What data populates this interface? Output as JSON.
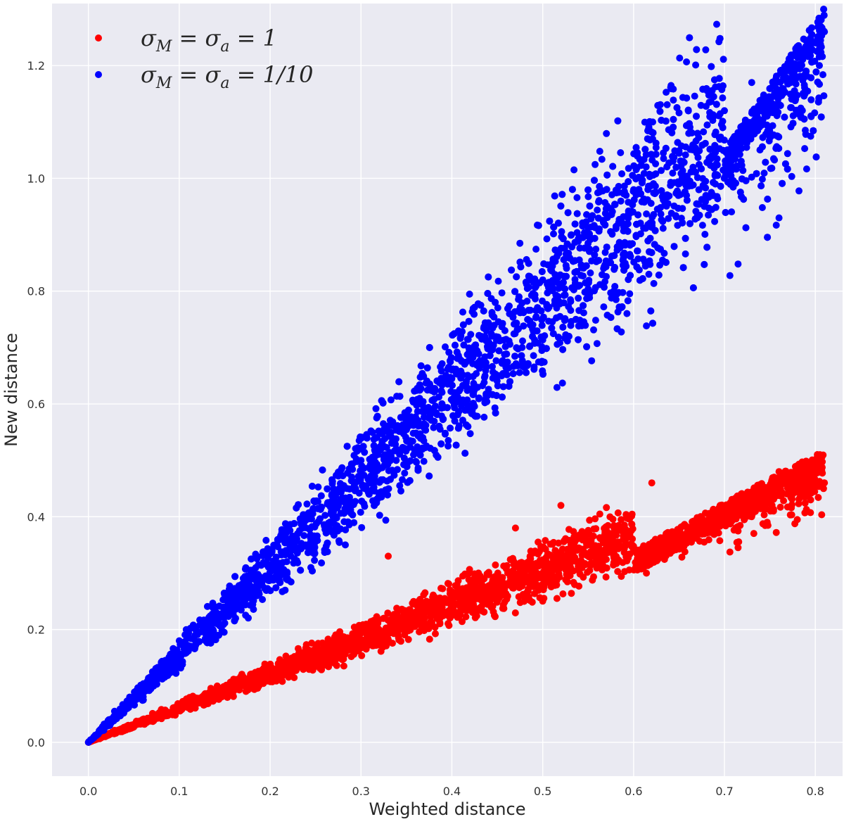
{
  "chart_data": {
    "type": "scatter",
    "xlabel": "Weighted distance",
    "ylabel": "New distance",
    "xlim": [
      -0.04,
      0.83
    ],
    "ylim": [
      -0.06,
      1.31
    ],
    "x_ticks": [
      "0.0",
      "0.1",
      "0.2",
      "0.3",
      "0.4",
      "0.5",
      "0.6",
      "0.7",
      "0.8"
    ],
    "y_ticks": [
      "0.0",
      "0.2",
      "0.4",
      "0.6",
      "0.8",
      "1.0",
      "1.2"
    ],
    "grid": true,
    "background": "#eaeaf2",
    "legend": {
      "placement": "top-left",
      "entries": [
        {
          "series": 0,
          "label_main": "σ",
          "label_sub1": "M",
          "label_mid": " = σ",
          "label_sub2": "a",
          "label_end": " = 1"
        },
        {
          "series": 1,
          "label_main": "σ",
          "label_sub1": "M",
          "label_mid": " = σ",
          "label_sub2": "a",
          "label_end": " = 1/10"
        }
      ]
    },
    "series": [
      {
        "color": "#ff0000",
        "band": {
          "x_range": [
            0.0,
            0.81
          ],
          "slope_low": 0.47,
          "slope_high": 0.75,
          "sample_points": [
            [
              0.0,
              0.0
            ],
            [
              0.1,
              0.06
            ],
            [
              0.2,
              0.12
            ],
            [
              0.3,
              0.18
            ],
            [
              0.4,
              0.24
            ],
            [
              0.5,
              0.29
            ],
            [
              0.6,
              0.34
            ],
            [
              0.7,
              0.41
            ],
            [
              0.77,
              0.46
            ],
            [
              0.81,
              0.46
            ]
          ],
          "outliers": [
            [
              0.33,
              0.33
            ],
            [
              0.76,
              0.48
            ],
            [
              0.62,
              0.46
            ],
            [
              0.52,
              0.42
            ],
            [
              0.47,
              0.38
            ]
          ]
        }
      },
      {
        "color": "#0000ff",
        "band": {
          "x_range": [
            0.0,
            0.81
          ],
          "slope_low": 1.15,
          "slope_high": 1.95,
          "sample_points": [
            [
              0.0,
              0.0
            ],
            [
              0.1,
              0.18
            ],
            [
              0.2,
              0.34
            ],
            [
              0.3,
              0.5
            ],
            [
              0.4,
              0.66
            ],
            [
              0.5,
              0.82
            ],
            [
              0.6,
              0.98
            ],
            [
              0.7,
              1.12
            ],
            [
              0.8,
              1.24
            ]
          ],
          "outliers": [
            [
              0.76,
              0.93
            ],
            [
              0.69,
              0.99
            ],
            [
              0.81,
              1.26
            ],
            [
              0.79,
              1.19
            ],
            [
              0.73,
              1.17
            ]
          ]
        }
      }
    ]
  }
}
